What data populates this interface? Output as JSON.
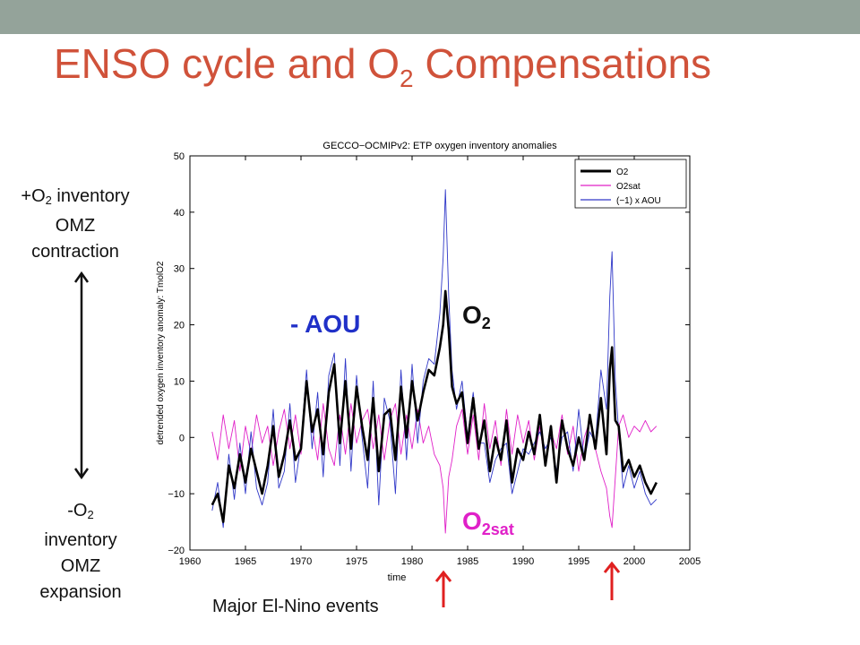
{
  "slide": {
    "title_main": "ENSO cycle and O",
    "title_sub": "2",
    "title_rest": " Compensations",
    "top_text": {
      "a": "+O",
      "sub": "2",
      "b": " inventory",
      "line2": "OMZ",
      "line3": "contraction"
    },
    "bottom_text": {
      "a": "-O",
      "sub": "2",
      "line2": "inventory",
      "line3": "OMZ",
      "line4": "expansion"
    },
    "caption": "Major El-Nino events",
    "label_aou": "- AOU",
    "label_o2": {
      "main": "O",
      "sub": "2"
    },
    "label_o2sat": {
      "main": "O",
      "sub": "2sat"
    },
    "colors": {
      "title": "#d0523a",
      "o2": "#000000",
      "o2sat": "#e020c8",
      "aou": "#2030c8",
      "arrows": "#e02020",
      "topbar": "#94a39a"
    }
  },
  "chart_data": {
    "type": "line",
    "title": "GECCO−OCMIPv2: ETP oxygen inventory anomalies",
    "xlabel": "time",
    "ylabel": "detrended oxygen inventory anomaly: TmolO2",
    "xlim": [
      1960,
      2005
    ],
    "ylim": [
      -20,
      50
    ],
    "xticks": [
      1960,
      1965,
      1970,
      1975,
      1980,
      1985,
      1990,
      1995,
      2000,
      2005
    ],
    "yticks": [
      -20,
      -10,
      0,
      10,
      20,
      30,
      40,
      50
    ],
    "legend_position": "top-right",
    "grid": false,
    "series": [
      {
        "name": "O2",
        "color": "#000000",
        "width": 2.6,
        "x": [
          1962,
          1962.5,
          1963,
          1963.5,
          1964,
          1964.5,
          1965,
          1965.5,
          1966,
          1966.5,
          1967,
          1967.5,
          1968,
          1968.5,
          1969,
          1969.5,
          1970,
          1970.5,
          1971,
          1971.5,
          1972,
          1972.5,
          1973,
          1973.5,
          1974,
          1974.5,
          1975,
          1975.5,
          1976,
          1976.5,
          1977,
          1977.5,
          1978,
          1978.5,
          1979,
          1979.5,
          1980,
          1980.5,
          1981,
          1981.5,
          1982,
          1982.5,
          1982.8,
          1983,
          1983.3,
          1983.6,
          1984,
          1984.5,
          1985,
          1985.5,
          1986,
          1986.5,
          1987,
          1987.5,
          1988,
          1988.5,
          1989,
          1989.5,
          1990,
          1990.5,
          1991,
          1991.5,
          1992,
          1992.5,
          1993,
          1993.5,
          1994,
          1994.5,
          1995,
          1995.5,
          1996,
          1996.5,
          1997,
          1997.5,
          1997.8,
          1998,
          1998.3,
          1998.6,
          1999,
          1999.5,
          2000,
          2000.5,
          2001,
          2001.5,
          2002
        ],
        "y": [
          -12,
          -10,
          -15,
          -5,
          -9,
          -3,
          -8,
          -2,
          -6,
          -10,
          -5,
          2,
          -7,
          -3,
          3,
          -4,
          -2,
          10,
          1,
          5,
          -3,
          8,
          13,
          -1,
          10,
          -2,
          9,
          2,
          -4,
          7,
          -6,
          4,
          5,
          -4,
          9,
          0,
          10,
          3,
          8,
          12,
          11,
          16,
          20,
          26,
          19,
          9,
          6,
          8,
          -1,
          7,
          -2,
          3,
          -6,
          0,
          -4,
          3,
          -8,
          -2,
          -4,
          1,
          -3,
          4,
          -5,
          2,
          -8,
          3,
          -2,
          -5,
          0,
          -4,
          4,
          -2,
          7,
          -3,
          12,
          16,
          3,
          2,
          -6,
          -4,
          -7,
          -5,
          -8,
          -10,
          -8
        ]
      },
      {
        "name": "O2sat",
        "color": "#e020c8",
        "width": 0.9,
        "x": [
          1962,
          1962.5,
          1963,
          1963.5,
          1964,
          1964.5,
          1965,
          1965.5,
          1966,
          1966.5,
          1967,
          1967.5,
          1968,
          1968.5,
          1969,
          1969.5,
          1970,
          1970.5,
          1971,
          1971.5,
          1972,
          1972.5,
          1973,
          1973.5,
          1974,
          1974.5,
          1975,
          1975.5,
          1976,
          1976.5,
          1977,
          1977.5,
          1978,
          1978.5,
          1979,
          1979.5,
          1980,
          1980.5,
          1981,
          1981.5,
          1982,
          1982.5,
          1982.8,
          1983,
          1983.3,
          1983.6,
          1984,
          1984.5,
          1985,
          1985.5,
          1986,
          1986.5,
          1987,
          1987.5,
          1988,
          1988.5,
          1989,
          1989.5,
          1990,
          1990.5,
          1991,
          1991.5,
          1992,
          1992.5,
          1993,
          1993.5,
          1994,
          1994.5,
          1995,
          1995.5,
          1996,
          1996.5,
          1997,
          1997.5,
          1997.8,
          1998,
          1998.3,
          1998.6,
          1999,
          1999.5,
          2000,
          2000.5,
          2001,
          2001.5,
          2002
        ],
        "y": [
          1,
          -4,
          4,
          -2,
          3,
          -6,
          2,
          -3,
          4,
          -1,
          2,
          -5,
          1,
          5,
          -2,
          4,
          -3,
          9,
          2,
          -4,
          6,
          -2,
          -5,
          4,
          -3,
          6,
          -1,
          3,
          5,
          -2,
          4,
          -4,
          3,
          6,
          -3,
          4,
          -2,
          5,
          -1,
          2,
          -3,
          -5,
          -9,
          -17,
          -7,
          -4,
          2,
          5,
          -3,
          4,
          -4,
          6,
          -2,
          3,
          -5,
          5,
          -3,
          4,
          -1,
          3,
          -4,
          2,
          -5,
          1,
          -2,
          4,
          -3,
          2,
          -6,
          0,
          3,
          -2,
          -6,
          -9,
          -14,
          -16,
          -7,
          2,
          4,
          0,
          2,
          1,
          3,
          1,
          2
        ]
      },
      {
        "name": "(−1) x AOU",
        "color": "#3038c8",
        "width": 0.9,
        "x": [
          1962,
          1962.5,
          1963,
          1963.5,
          1964,
          1964.5,
          1965,
          1965.5,
          1966,
          1966.5,
          1967,
          1967.5,
          1968,
          1968.5,
          1969,
          1969.5,
          1970,
          1970.5,
          1971,
          1971.5,
          1972,
          1972.5,
          1973,
          1973.5,
          1974,
          1974.5,
          1975,
          1975.5,
          1976,
          1976.5,
          1977,
          1977.5,
          1978,
          1978.5,
          1979,
          1979.5,
          1980,
          1980.5,
          1981,
          1981.5,
          1982,
          1982.5,
          1982.8,
          1983,
          1983.3,
          1983.6,
          1984,
          1984.5,
          1985,
          1985.5,
          1986,
          1986.5,
          1987,
          1987.5,
          1988,
          1988.5,
          1989,
          1989.5,
          1990,
          1990.5,
          1991,
          1991.5,
          1992,
          1992.5,
          1993,
          1993.5,
          1994,
          1994.5,
          1995,
          1995.5,
          1996,
          1996.5,
          1997,
          1997.5,
          1997.8,
          1998,
          1998.3,
          1998.6,
          1999,
          1999.5,
          2000,
          2000.5,
          2001,
          2001.5,
          2002
        ],
        "y": [
          -13,
          -8,
          -16,
          -3,
          -11,
          -1,
          -10,
          1,
          -9,
          -12,
          -8,
          5,
          -9,
          -6,
          6,
          -8,
          -1,
          12,
          -2,
          8,
          -7,
          11,
          15,
          -5,
          14,
          -6,
          11,
          0,
          -9,
          10,
          -12,
          7,
          3,
          -10,
          12,
          -4,
          13,
          -1,
          10,
          14,
          13,
          22,
          32,
          44,
          25,
          12,
          5,
          10,
          0,
          8,
          -1,
          -1,
          -8,
          -4,
          -2,
          -1,
          -10,
          -6,
          -2,
          -3,
          -1,
          1,
          -2,
          0,
          -6,
          0,
          1,
          -6,
          5,
          -4,
          1,
          -1,
          12,
          5,
          25,
          33,
          10,
          1,
          -9,
          -5,
          -9,
          -6,
          -10,
          -12,
          -11
        ]
      }
    ]
  }
}
